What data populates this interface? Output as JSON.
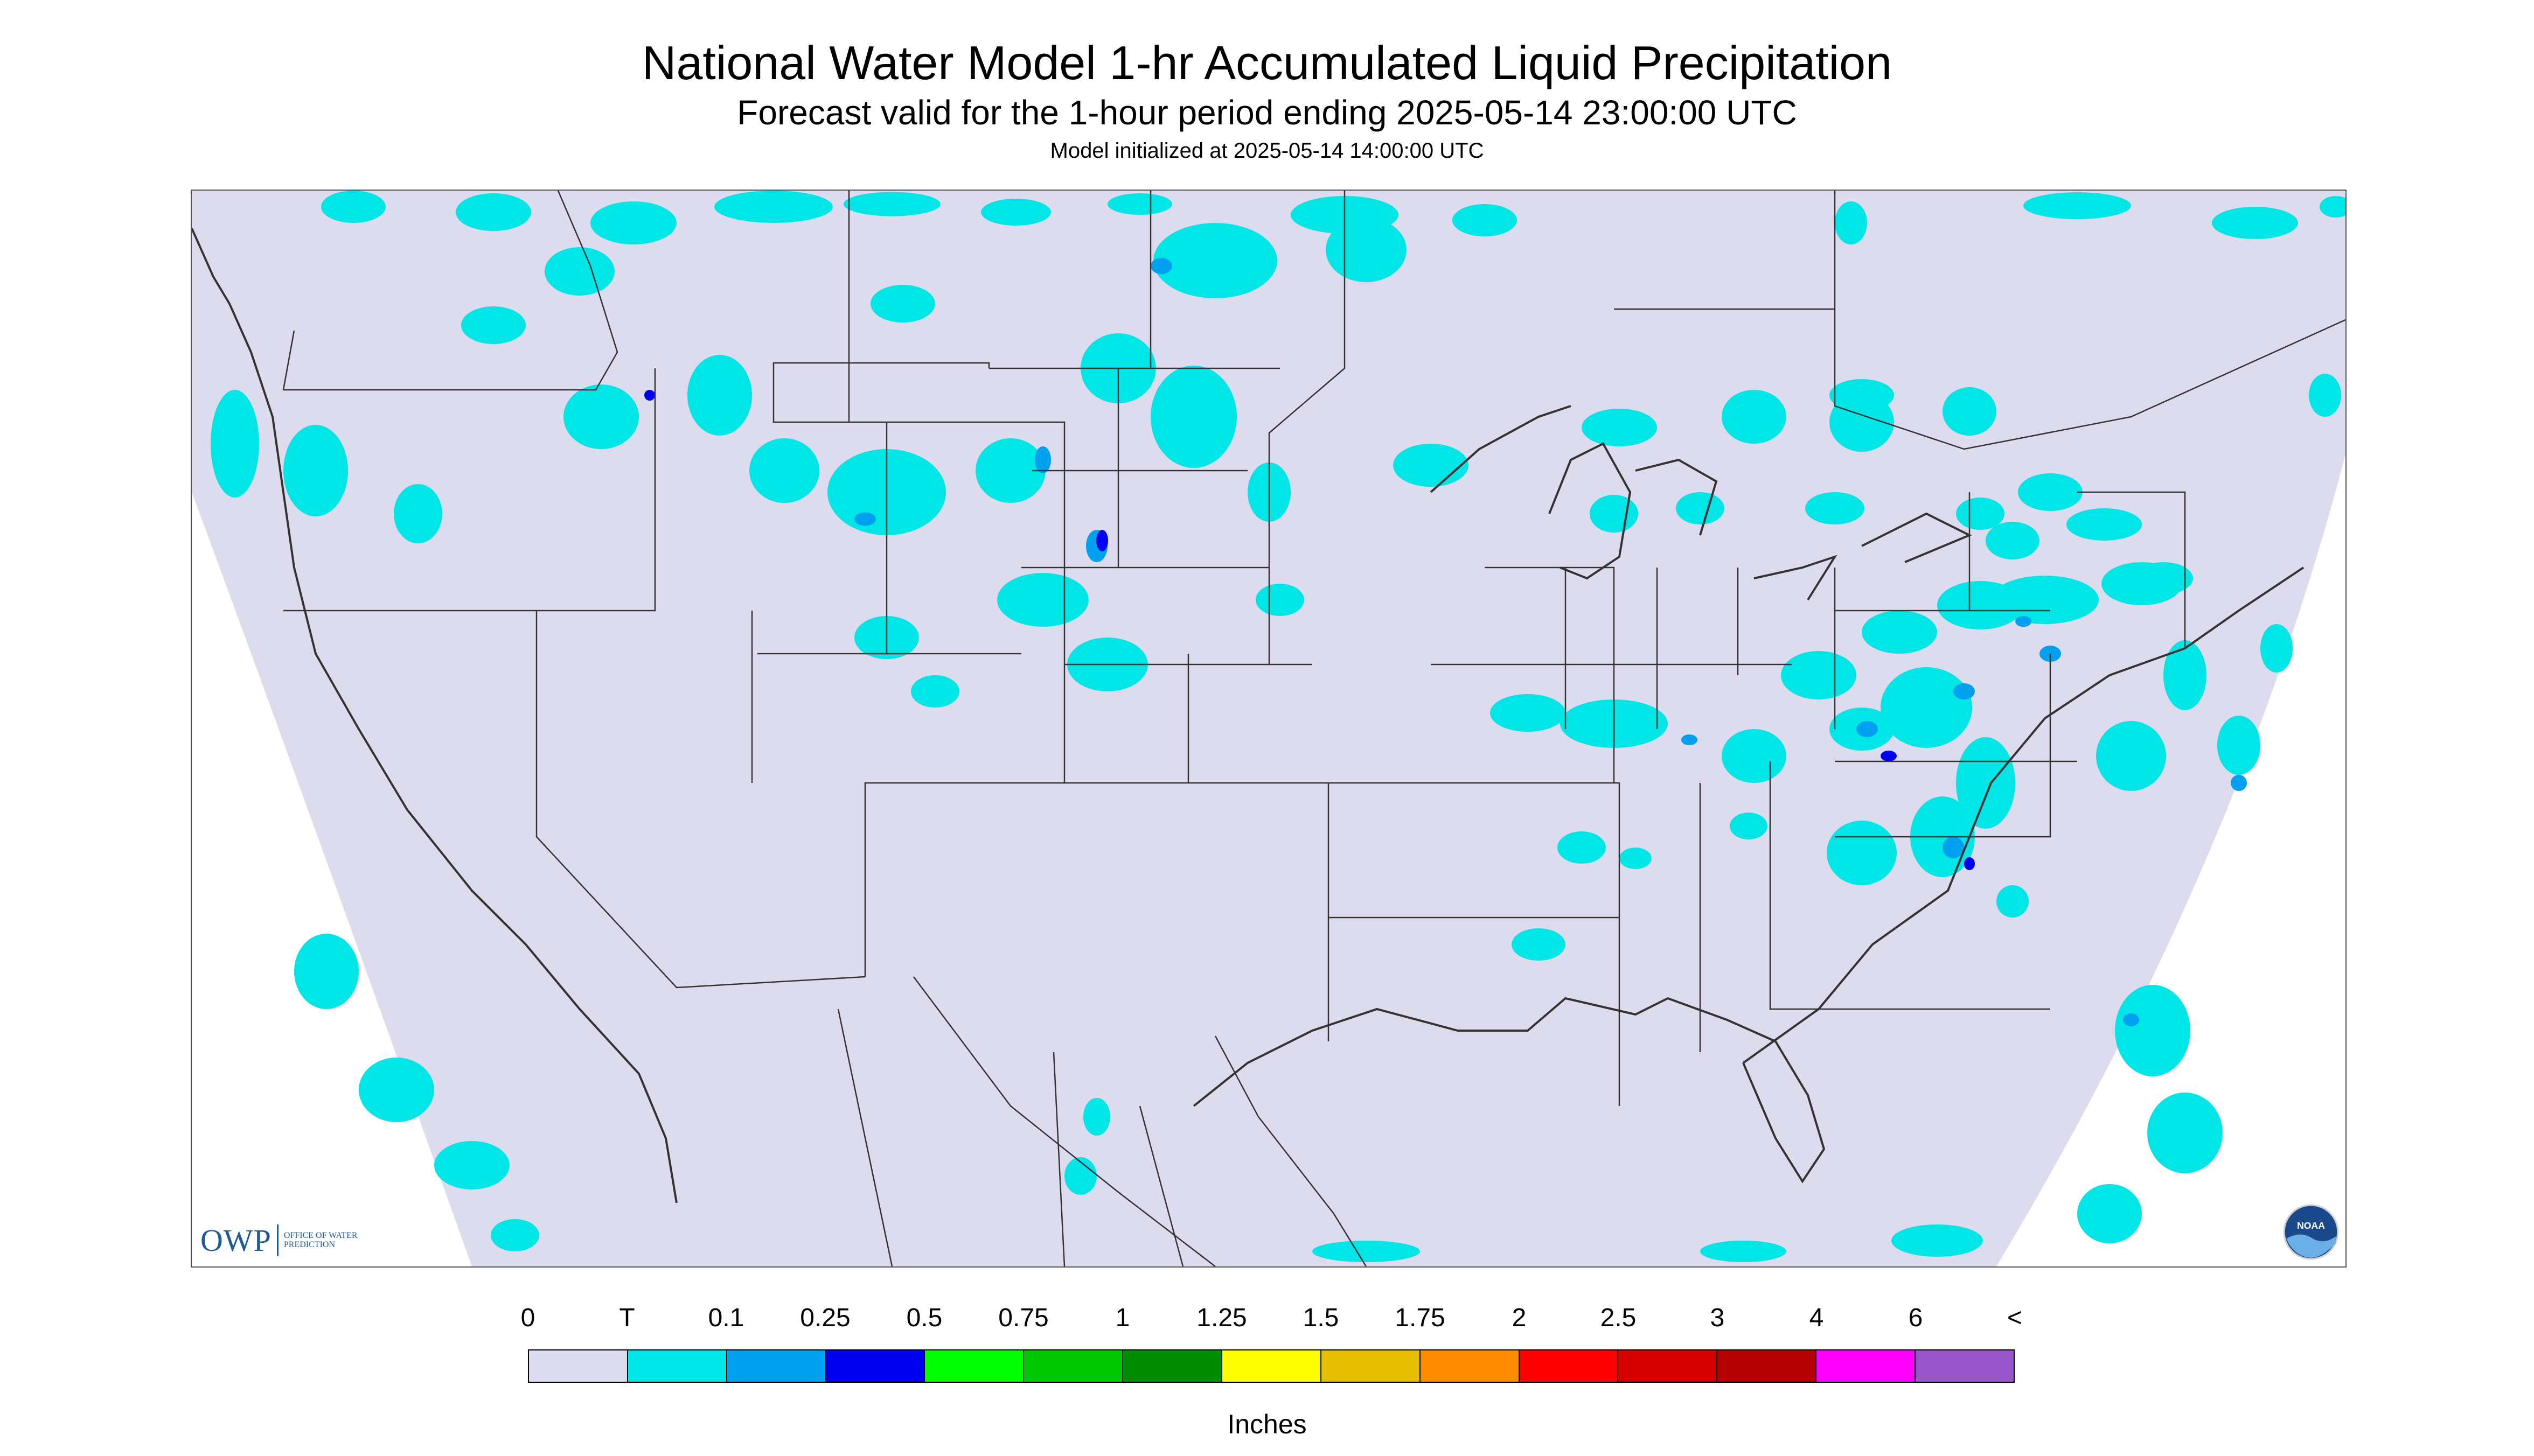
{
  "header": {
    "title": "National Water Model 1-hr Accumulated Liquid Precipitation",
    "subtitle": "Forecast valid for the 1-hour period ending 2025-05-14 23:00:00 UTC",
    "init": "Model initialized at 2025-05-14 14:00:00 UTC"
  },
  "logo": {
    "owp_text": "OWP",
    "owp_small": "OFFICE OF WATER PREDICTION",
    "noaa_text": "NOAA"
  },
  "legend": {
    "labels": [
      "0",
      "T",
      "0.1",
      "0.25",
      "0.5",
      "0.75",
      "1",
      "1.25",
      "1.5",
      "1.75",
      "2",
      "2.5",
      "3",
      "4",
      "6",
      "<"
    ],
    "colors": [
      "#dcdcee",
      "#00e6e6",
      "#00a0f0",
      "#0000f0",
      "#00ff00",
      "#00c800",
      "#008c00",
      "#ffff00",
      "#e6be00",
      "#ff8c00",
      "#ff0000",
      "#d70000",
      "#b40000",
      "#ff00ff",
      "#9955cc"
    ],
    "units": "Inches"
  },
  "map": {
    "domain_color": "#dcdcee",
    "outside_color": "#ffffff",
    "trace_color": "#00e6e6",
    "light_color": "#00a0f0",
    "heavy_color": "#0000f0",
    "boundary_color": "#333333"
  }
}
